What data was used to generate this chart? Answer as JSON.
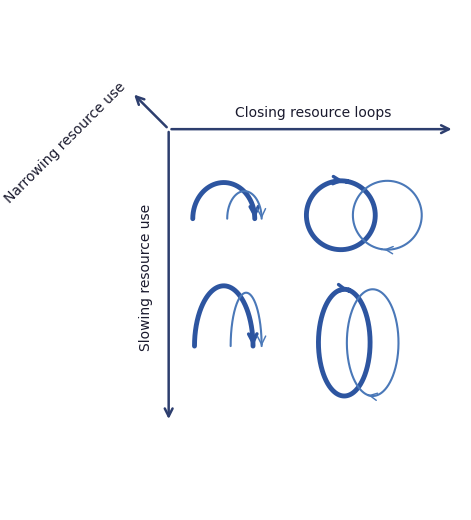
{
  "bg_color": "#ffffff",
  "thick_color": "#2d55a0",
  "thin_color": "#4a78b8",
  "axis_color": "#2d3e6e",
  "text_color": "#1a1a2e",
  "closing_label": "Closing resource loops",
  "narrowing_label": "Narrowing resource use",
  "slowing_label": "Slowing resource use"
}
